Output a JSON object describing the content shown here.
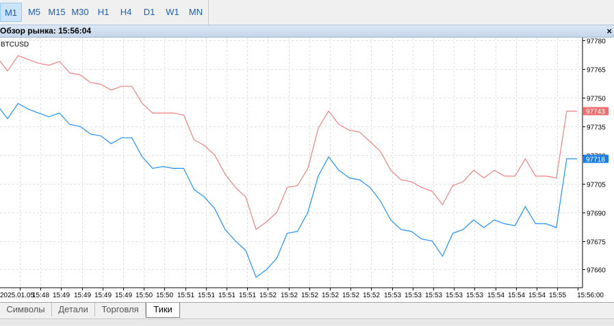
{
  "timeframes": [
    {
      "label": "M1",
      "active": true
    },
    {
      "label": "M5",
      "active": false
    },
    {
      "label": "M15",
      "active": false
    },
    {
      "label": "M30",
      "active": false
    },
    {
      "label": "H1",
      "active": false
    },
    {
      "label": "H4",
      "active": false
    },
    {
      "label": "D1",
      "active": false
    },
    {
      "label": "W1",
      "active": false
    },
    {
      "label": "MN",
      "active": false
    }
  ],
  "window": {
    "title": "Обзор рынка: 15:56:04",
    "close_glyph": "×"
  },
  "tabs": [
    {
      "label": "Символы",
      "active": false
    },
    {
      "label": "Детали",
      "active": false
    },
    {
      "label": "Торговля",
      "active": false
    },
    {
      "label": "Тики",
      "active": true
    }
  ],
  "colors": {
    "ask": "#f08080",
    "bid": "#1e90ff",
    "ask_label": "#f07070",
    "bid_label": "#1e7fe0",
    "grid": "#e0e0e0"
  },
  "chart_data": {
    "type": "line",
    "symbol": "BTCUSD",
    "x_tick_labels": [
      "2025.01.05",
      "15:48",
      "15:49",
      "15:49",
      "15:49",
      "15:49",
      "15:50",
      "15:50",
      "15:51",
      "15:51",
      "15:51",
      "15:51",
      "15:52",
      "15:52",
      "15:52",
      "15:52",
      "15:52",
      "15:52",
      "15:53",
      "15:53",
      "15:53",
      "15:53",
      "15:53",
      "15:54",
      "15:54",
      "15:54",
      "15:55",
      "15:56:00"
    ],
    "y_ticks": [
      97780,
      97765,
      97750,
      97735,
      97720,
      97705,
      97690,
      97675,
      97660
    ],
    "ylim": [
      97650.5,
      97781.5
    ],
    "grid": true,
    "series": [
      {
        "name": "Ask",
        "last_label": "97743",
        "values": [
          97771,
          97764,
          97772,
          97770,
          97768,
          97767,
          97769,
          97763,
          97762,
          97758,
          97757,
          97754,
          97756,
          97756,
          97747,
          97742,
          97742,
          97742,
          97741,
          97728,
          97725,
          97720,
          97710,
          97703,
          97698,
          97681,
          97685,
          97690,
          97703,
          97704,
          97713,
          97734,
          97743,
          97736,
          97733,
          97732,
          97727,
          97722,
          97712,
          97707,
          97706,
          97703,
          97701,
          97694,
          97704,
          97706,
          97712,
          97708,
          97712,
          97709,
          97709,
          97718,
          97709,
          97709,
          97708,
          97743,
          97743
        ]
      },
      {
        "name": "Bid",
        "last_label": "97718",
        "values": [
          97746,
          97739,
          97747,
          97744,
          97742,
          97740,
          97742,
          97736,
          97735,
          97731,
          97730,
          97726,
          97729,
          97729,
          97719,
          97713,
          97714,
          97713,
          97713,
          97702,
          97698,
          97692,
          97681,
          97675,
          97670,
          97656,
          97660,
          97666,
          97679,
          97680,
          97690,
          97709,
          97719,
          97712,
          97708,
          97707,
          97703,
          97696,
          97686,
          97681,
          97680,
          97676,
          97675,
          97667,
          97679,
          97681,
          97686,
          97682,
          97686,
          97684,
          97683,
          97693,
          97684,
          97684,
          97682,
          97718,
          97718
        ]
      }
    ]
  }
}
